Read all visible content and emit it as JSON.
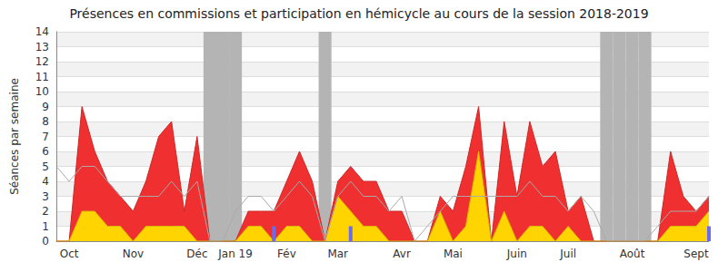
{
  "chart_data": {
    "type": "line",
    "title": "Présences en commissions et participation en hémicycle au cours de la session 2018-2019",
    "ylabel": "Séances par semaine",
    "categories": [
      null,
      "Oct",
      null,
      null,
      null,
      null,
      "Nov",
      null,
      null,
      null,
      null,
      "Déc",
      null,
      null,
      "Jan 19",
      null,
      null,
      null,
      "Fév",
      null,
      null,
      null,
      "Mar",
      null,
      null,
      null,
      null,
      "Avr",
      null,
      null,
      null,
      "Mai",
      null,
      null,
      null,
      null,
      "Juin",
      null,
      null,
      null,
      "Juil",
      null,
      null,
      null,
      null,
      "Août",
      null,
      null,
      null,
      null,
      "Sept",
      null
    ],
    "series": [
      {
        "type": "band",
        "color": "#b4b4b4",
        "values": [
          null,
          null,
          null,
          null,
          null,
          null,
          null,
          null,
          null,
          null,
          null,
          null,
          14,
          14,
          14,
          null,
          null,
          null,
          null,
          null,
          null,
          14,
          null,
          null,
          null,
          null,
          null,
          null,
          null,
          null,
          null,
          null,
          null,
          null,
          null,
          null,
          null,
          null,
          null,
          null,
          null,
          null,
          null,
          14,
          14,
          14,
          14,
          null,
          null,
          null,
          null,
          null
        ]
      },
      {
        "type": "area",
        "color": "#f03030",
        "values": [
          0,
          0,
          9,
          6,
          4,
          3,
          2,
          4,
          7,
          8,
          2,
          7,
          0,
          0,
          0,
          2,
          2,
          2,
          4,
          6,
          4,
          0,
          4,
          5,
          4,
          4,
          2,
          2,
          0,
          0,
          3,
          2,
          5,
          9,
          0,
          8,
          3,
          8,
          5,
          6,
          2,
          3,
          0,
          0,
          0,
          0,
          0,
          0,
          6,
          3,
          2,
          3
        ]
      },
      {
        "type": "area",
        "color": "#ffd400",
        "values": [
          0,
          0,
          2,
          2,
          1,
          1,
          0,
          1,
          1,
          1,
          1,
          0,
          0,
          0,
          0,
          1,
          1,
          0,
          1,
          1,
          0,
          0,
          3,
          2,
          1,
          1,
          0,
          0,
          0,
          0,
          2,
          0,
          1,
          6,
          0,
          2,
          0,
          1,
          1,
          0,
          1,
          0,
          0,
          0,
          0,
          0,
          0,
          0,
          1,
          1,
          1,
          2
        ]
      },
      {
        "type": "line",
        "color": "#aaaaaa",
        "values": [
          5,
          4,
          5,
          5,
          4,
          3,
          3,
          3,
          3,
          4,
          3,
          4,
          0,
          0,
          2,
          3,
          3,
          2,
          3,
          4,
          3,
          0,
          3,
          4,
          3,
          3,
          2,
          3,
          0,
          1,
          2,
          3,
          3,
          3,
          3,
          3,
          3,
          4,
          3,
          3,
          2,
          3,
          2,
          0,
          0,
          0,
          0,
          1,
          2,
          2,
          2,
          3
        ]
      },
      {
        "type": "bar",
        "color": "#6b6bf0",
        "values": [
          null,
          null,
          null,
          null,
          null,
          null,
          null,
          null,
          null,
          null,
          null,
          null,
          null,
          null,
          null,
          null,
          null,
          1,
          null,
          null,
          null,
          null,
          null,
          1,
          null,
          null,
          null,
          null,
          null,
          null,
          null,
          null,
          null,
          null,
          null,
          null,
          null,
          null,
          null,
          null,
          null,
          null,
          null,
          null,
          null,
          null,
          null,
          null,
          null,
          null,
          null,
          1
        ]
      }
    ],
    "ylim": [
      0,
      14
    ],
    "yticks": [
      0,
      1,
      2,
      3,
      4,
      5,
      6,
      7,
      8,
      9,
      10,
      11,
      12,
      13,
      14
    ],
    "grid": true
  }
}
